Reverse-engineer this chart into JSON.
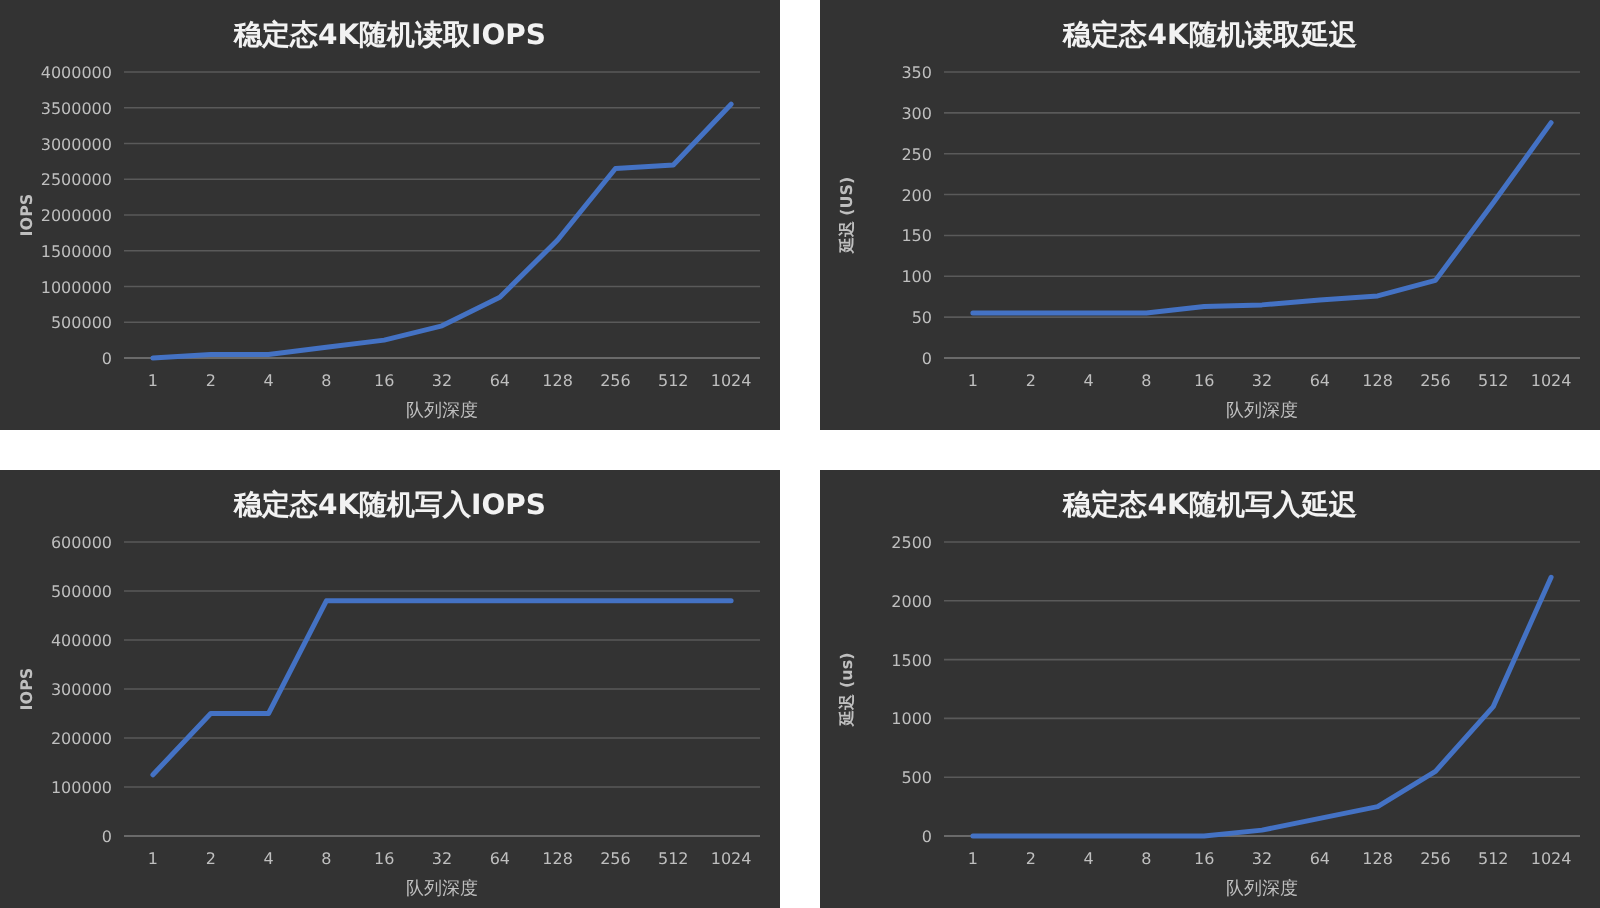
{
  "chart_data": [
    {
      "type": "line",
      "title": "稳定态4K随机读取IOPS",
      "xlabel": "队列深度",
      "ylabel": "IOPS",
      "categories": [
        "1",
        "2",
        "4",
        "8",
        "16",
        "32",
        "64",
        "128",
        "256",
        "512",
        "1024"
      ],
      "series": [
        {
          "color": "#4472c4",
          "values": [
            0,
            50000,
            50000,
            150000,
            250000,
            450000,
            850000,
            1650000,
            2650000,
            2700000,
            3550000
          ]
        }
      ],
      "ylim": [
        0,
        4000000
      ],
      "yticks": [
        0,
        500000,
        1000000,
        1500000,
        2000000,
        2500000,
        3000000,
        3500000,
        4000000
      ],
      "grid": "y"
    },
    {
      "type": "line",
      "title": "稳定态4K随机读取延迟",
      "xlabel": "队列深度",
      "ylabel": "延迟 (US)",
      "categories": [
        "1",
        "2",
        "4",
        "8",
        "16",
        "32",
        "64",
        "128",
        "256",
        "512",
        "1024"
      ],
      "series": [
        {
          "color": "#4472c4",
          "values": [
            55,
            55,
            55,
            55,
            63,
            65,
            71,
            76,
            95,
            190,
            288
          ]
        }
      ],
      "ylim": [
        0,
        350
      ],
      "yticks": [
        0,
        50,
        100,
        150,
        200,
        250,
        300,
        350
      ],
      "grid": "y"
    },
    {
      "type": "line",
      "title": "稳定态4K随机写入IOPS",
      "xlabel": "队列深度",
      "ylabel": "IOPS",
      "categories": [
        "1",
        "2",
        "4",
        "8",
        "16",
        "32",
        "64",
        "128",
        "256",
        "512",
        "1024"
      ],
      "series": [
        {
          "color": "#4472c4",
          "values": [
            125000,
            250000,
            250000,
            480000,
            480000,
            480000,
            480000,
            480000,
            480000,
            480000,
            480000
          ]
        }
      ],
      "ylim": [
        0,
        600000
      ],
      "yticks": [
        0,
        100000,
        200000,
        300000,
        400000,
        500000,
        600000
      ],
      "grid": "y"
    },
    {
      "type": "line",
      "title": "稳定态4K随机写入延迟",
      "xlabel": "队列深度",
      "ylabel": "延迟 (us)",
      "categories": [
        "1",
        "2",
        "4",
        "8",
        "16",
        "32",
        "64",
        "128",
        "256",
        "512",
        "1024"
      ],
      "series": [
        {
          "color": "#4472c4",
          "values": [
            0,
            0,
            0,
            0,
            0,
            50,
            150,
            250,
            550,
            1100,
            2200
          ]
        }
      ],
      "ylim": [
        0,
        2500
      ],
      "yticks": [
        0,
        500,
        1000,
        1500,
        2000,
        2500
      ],
      "grid": "y"
    }
  ]
}
